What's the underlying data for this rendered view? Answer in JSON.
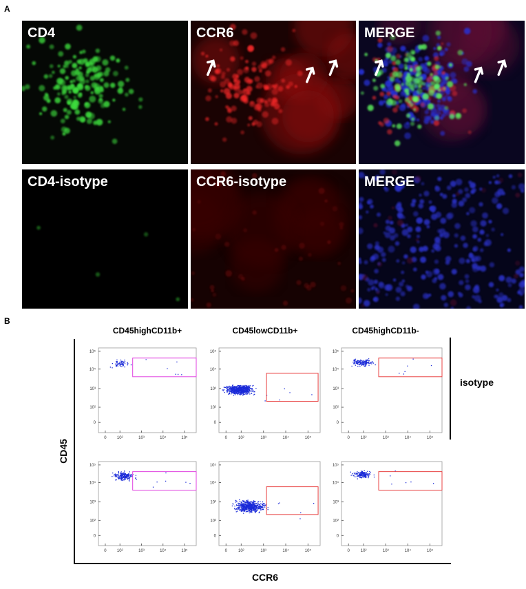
{
  "panel_a": {
    "label": "A",
    "images": [
      {
        "label": "CD4"
      },
      {
        "label": "CCR6"
      },
      {
        "label": "MERGE"
      },
      {
        "label": "CD4-isotype"
      },
      {
        "label": "CCR6-isotype"
      },
      {
        "label": "MERGE"
      }
    ]
  },
  "panel_b": {
    "label": "B",
    "columns": [
      "CD45highCD11b+",
      "CD45lowCD11b+",
      "CD45highCD11b-"
    ],
    "row_label": "isotype",
    "y_axis": "CD45",
    "x_axis": "CCR6",
    "yticks": [
      "10⁵",
      "10⁴",
      "10³",
      "10²",
      "0"
    ],
    "xticks": [
      "0",
      "10²",
      "10³",
      "10⁴",
      "10⁵"
    ]
  }
}
